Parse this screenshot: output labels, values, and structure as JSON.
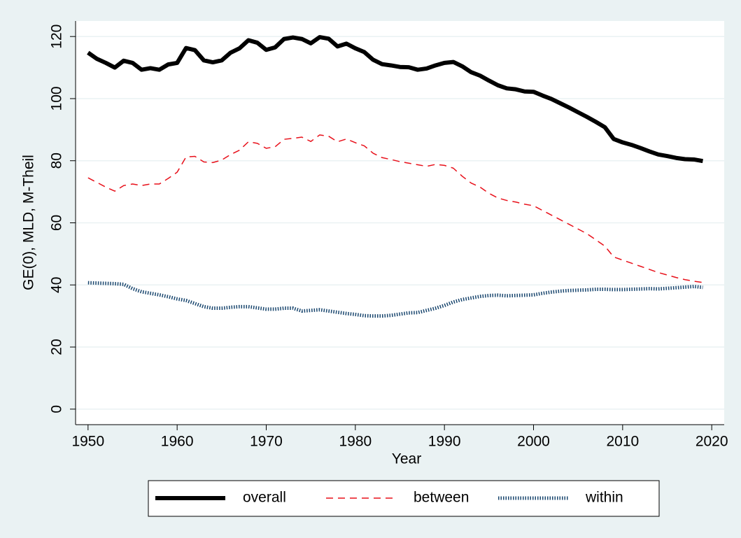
{
  "chart_data": {
    "type": "line",
    "xlabel": "Year",
    "ylabel": "GE(0), MLD, M-Theil",
    "x": [
      1950,
      1951,
      1952,
      1953,
      1954,
      1955,
      1956,
      1957,
      1958,
      1959,
      1960,
      1961,
      1962,
      1963,
      1964,
      1965,
      1966,
      1967,
      1968,
      1969,
      1970,
      1971,
      1972,
      1973,
      1974,
      1975,
      1976,
      1977,
      1978,
      1979,
      1980,
      1981,
      1982,
      1983,
      1984,
      1985,
      1986,
      1987,
      1988,
      1989,
      1990,
      1991,
      1992,
      1993,
      1994,
      1995,
      1996,
      1997,
      1998,
      1999,
      2000,
      2001,
      2002,
      2003,
      2004,
      2005,
      2006,
      2007,
      2008,
      2009,
      2010,
      2011,
      2012,
      2013,
      2014,
      2015,
      2016,
      2017,
      2018,
      2019
    ],
    "series": [
      {
        "name": "overall",
        "color": "#000000",
        "values": [
          114.8,
          112.8,
          111.5,
          110,
          112.2,
          111.5,
          109.3,
          109.8,
          109.3,
          111,
          111.5,
          116.3,
          115.6,
          112.3,
          111.7,
          112.3,
          114.8,
          116.2,
          118.8,
          118,
          115.7,
          116.5,
          119.2,
          119.7,
          119.2,
          117.8,
          119.8,
          119.3,
          116.8,
          117.7,
          116.2,
          115,
          112.5,
          111.1,
          110.7,
          110.2,
          110.1,
          109.3,
          109.7,
          110.7,
          111.5,
          111.8,
          110.4,
          108.5,
          107.4,
          105.8,
          104.3,
          103.3,
          103,
          102.3,
          102.2,
          101,
          99.9,
          98.5,
          97.1,
          95.6,
          94.1,
          92.5,
          90.8,
          87,
          85.9,
          85.1,
          84.1,
          83,
          82,
          81.5,
          80.9,
          80.5,
          80.4,
          79.9
        ]
      },
      {
        "name": "between",
        "color": "#e8101a",
        "values": [
          74.5,
          73,
          71.5,
          70.2,
          72,
          72.5,
          72,
          72.5,
          72.5,
          74.3,
          76.3,
          81.2,
          81.4,
          79.6,
          79.4,
          80.2,
          82,
          83.4,
          86.1,
          85.6,
          84,
          84.5,
          86.9,
          87.2,
          87.6,
          86.2,
          88.3,
          87.9,
          86.1,
          87,
          85.8,
          84.8,
          82.4,
          81,
          80.4,
          79.7,
          79.2,
          78.7,
          78.2,
          78.8,
          78.5,
          77.6,
          75,
          72.8,
          71.5,
          69.5,
          68,
          67.2,
          66.7,
          66,
          65.5,
          64,
          62.5,
          61,
          59.5,
          58,
          56.5,
          54.5,
          52.5,
          49,
          48,
          47,
          46,
          45,
          44,
          43.2,
          42.4,
          41.7,
          41.2,
          40.8
        ]
      },
      {
        "name": "within",
        "color": "#1a476f",
        "values": [
          40.7,
          40.6,
          40.5,
          40.4,
          40.2,
          38.8,
          37.8,
          37.3,
          36.8,
          36.2,
          35.5,
          35,
          34,
          33,
          32.5,
          32.5,
          32.8,
          33,
          33,
          32.6,
          32.2,
          32.2,
          32.5,
          32.5,
          31.6,
          31.8,
          32,
          31.6,
          31.2,
          30.8,
          30.5,
          30.1,
          30,
          30,
          30.2,
          30.6,
          31,
          31.1,
          31.8,
          32.5,
          33.4,
          34.5,
          35.3,
          35.8,
          36.3,
          36.6,
          36.7,
          36.5,
          36.6,
          36.7,
          36.8,
          37.3,
          37.7,
          38,
          38.2,
          38.3,
          38.4,
          38.6,
          38.6,
          38.5,
          38.5,
          38.6,
          38.7,
          38.8,
          38.7,
          38.9,
          39.1,
          39.3,
          39.5,
          39.2
        ]
      }
    ],
    "xlim": [
      1948.6,
      2021.4
    ],
    "xticks": [
      1950,
      1960,
      1970,
      1980,
      1990,
      2000,
      2010,
      2020
    ],
    "ylim": [
      -5,
      125
    ],
    "yticks": [
      0,
      20,
      40,
      60,
      80,
      100,
      120
    ],
    "grid": true,
    "legend": "bottom"
  }
}
